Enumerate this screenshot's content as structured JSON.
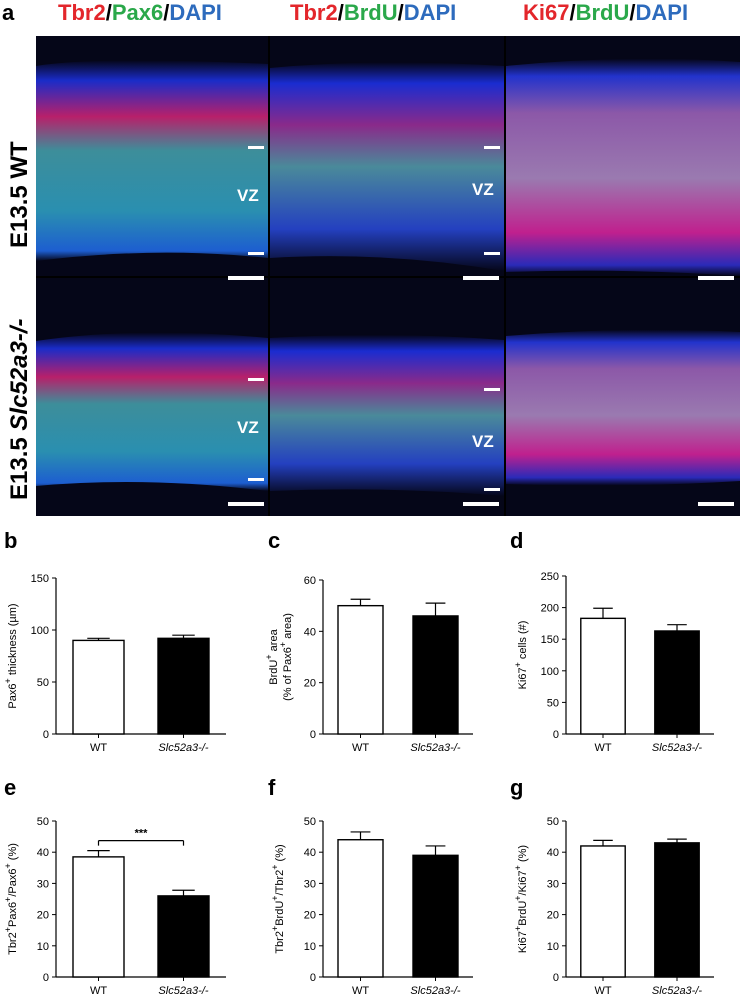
{
  "figure": {
    "panel_letters": {
      "a": "a",
      "b": "b",
      "c": "c",
      "d": "d",
      "e": "e",
      "f": "f",
      "g": "g"
    },
    "column_titles": [
      {
        "parts": [
          "Tbr2",
          "/",
          "Pax6",
          "/",
          "DAPI"
        ],
        "colors": [
          "#e3262b",
          "#000000",
          "#2aa84a",
          "#000000",
          "#2d6bbd"
        ]
      },
      {
        "parts": [
          "Tbr2",
          "/",
          "BrdU",
          "/",
          "DAPI"
        ],
        "colors": [
          "#e3262b",
          "#000000",
          "#2aa84a",
          "#000000",
          "#2d6bbd"
        ]
      },
      {
        "parts": [
          "Ki67",
          "/",
          "BrdU",
          "/",
          "DAPI"
        ],
        "colors": [
          "#e3262b",
          "#000000",
          "#2aa84a",
          "#000000",
          "#2d6bbd"
        ]
      }
    ],
    "row_labels": {
      "wt": "E13.5 WT",
      "ko_prefix": "E13.5 ",
      "ko_gene": "Slc52a3-/-"
    },
    "vz_label": "VZ"
  },
  "chart_data": [
    {
      "id": "b",
      "type": "bar",
      "categories": [
        "WT",
        "Slc52a3-/-"
      ],
      "values": [
        90,
        92
      ],
      "errors": [
        2,
        3
      ],
      "ylabel": "Pax6+ thickness (µm)",
      "ylim": [
        0,
        150
      ],
      "yticks": [
        0,
        50,
        100,
        150
      ],
      "significance": ""
    },
    {
      "id": "c",
      "type": "bar",
      "categories": [
        "WT",
        "Slc52a3-/-"
      ],
      "values": [
        50,
        46
      ],
      "errors": [
        2.5,
        5
      ],
      "ylabel": "BrdU+ area (% of Pax6+ area)",
      "ylim": [
        0,
        60
      ],
      "yticks": [
        0,
        20,
        40,
        60
      ],
      "significance": ""
    },
    {
      "id": "d",
      "type": "bar",
      "categories": [
        "WT",
        "Slc52a3-/-"
      ],
      "values": [
        183,
        163
      ],
      "errors": [
        16,
        10
      ],
      "ylabel": "Ki67+ cells (#)",
      "ylim": [
        0,
        250
      ],
      "yticks": [
        0,
        50,
        100,
        150,
        200,
        250
      ],
      "significance": ""
    },
    {
      "id": "e",
      "type": "bar",
      "categories": [
        "WT",
        "Slc52a3-/-"
      ],
      "values": [
        38.5,
        26
      ],
      "errors": [
        2,
        1.8
      ],
      "ylabel": "Tbr2+Pax6+/Pax6+ (%)",
      "ylim": [
        0,
        50
      ],
      "yticks": [
        0,
        10,
        20,
        30,
        40,
        50
      ],
      "significance": "***"
    },
    {
      "id": "f",
      "type": "bar",
      "categories": [
        "WT",
        "Slc52a3-/-"
      ],
      "values": [
        44,
        39
      ],
      "errors": [
        2.5,
        3
      ],
      "ylabel": "Tbr2+BrdU+/Tbr2+ (%)",
      "ylim": [
        0,
        50
      ],
      "yticks": [
        0,
        10,
        20,
        30,
        40,
        50
      ],
      "significance": ""
    },
    {
      "id": "g",
      "type": "bar",
      "categories": [
        "WT",
        "Slc52a3-/-"
      ],
      "values": [
        42,
        43
      ],
      "errors": [
        1.8,
        1.2
      ],
      "ylabel": "Ki67+BrdU+/Ki67+ (%)",
      "ylim": [
        0,
        50
      ],
      "yticks": [
        0,
        10,
        20,
        30,
        40,
        50
      ],
      "significance": ""
    }
  ],
  "colors": {
    "wt_fill": "#ffffff",
    "ko_fill": "#000000",
    "axis": "#000000"
  }
}
